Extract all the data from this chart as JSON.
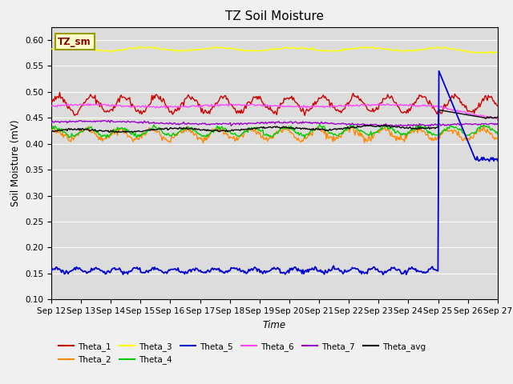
{
  "title": "TZ Soil Moisture",
  "ylabel": "Soil Moisture (mV)",
  "xlabel": "Time",
  "annotation": "TZ_sm",
  "ylim": [
    0.1,
    0.625
  ],
  "yticks": [
    0.1,
    0.15,
    0.2,
    0.25,
    0.3,
    0.35,
    0.4,
    0.45,
    0.5,
    0.55,
    0.6
  ],
  "x_labels": [
    "Sep 12",
    "Sep 13",
    "Sep 14",
    "Sep 15",
    "Sep 16",
    "Sep 17",
    "Sep 18",
    "Sep 19",
    "Sep 20",
    "Sep 21",
    "Sep 22",
    "Sep 23",
    "Sep 24",
    "Sep 25",
    "Sep 26",
    "Sep 27"
  ],
  "num_points": 480,
  "colors": {
    "Theta_1": "#cc0000",
    "Theta_2": "#ff8800",
    "Theta_3": "#ffff00",
    "Theta_4": "#00cc00",
    "Theta_5": "#0000cc",
    "Theta_6": "#ff44ff",
    "Theta_7": "#9900cc",
    "Theta_avg": "#000000"
  },
  "plot_bg": "#dcdcdc",
  "fig_bg": "#f0f0f0",
  "grid_color": "#ffffff"
}
